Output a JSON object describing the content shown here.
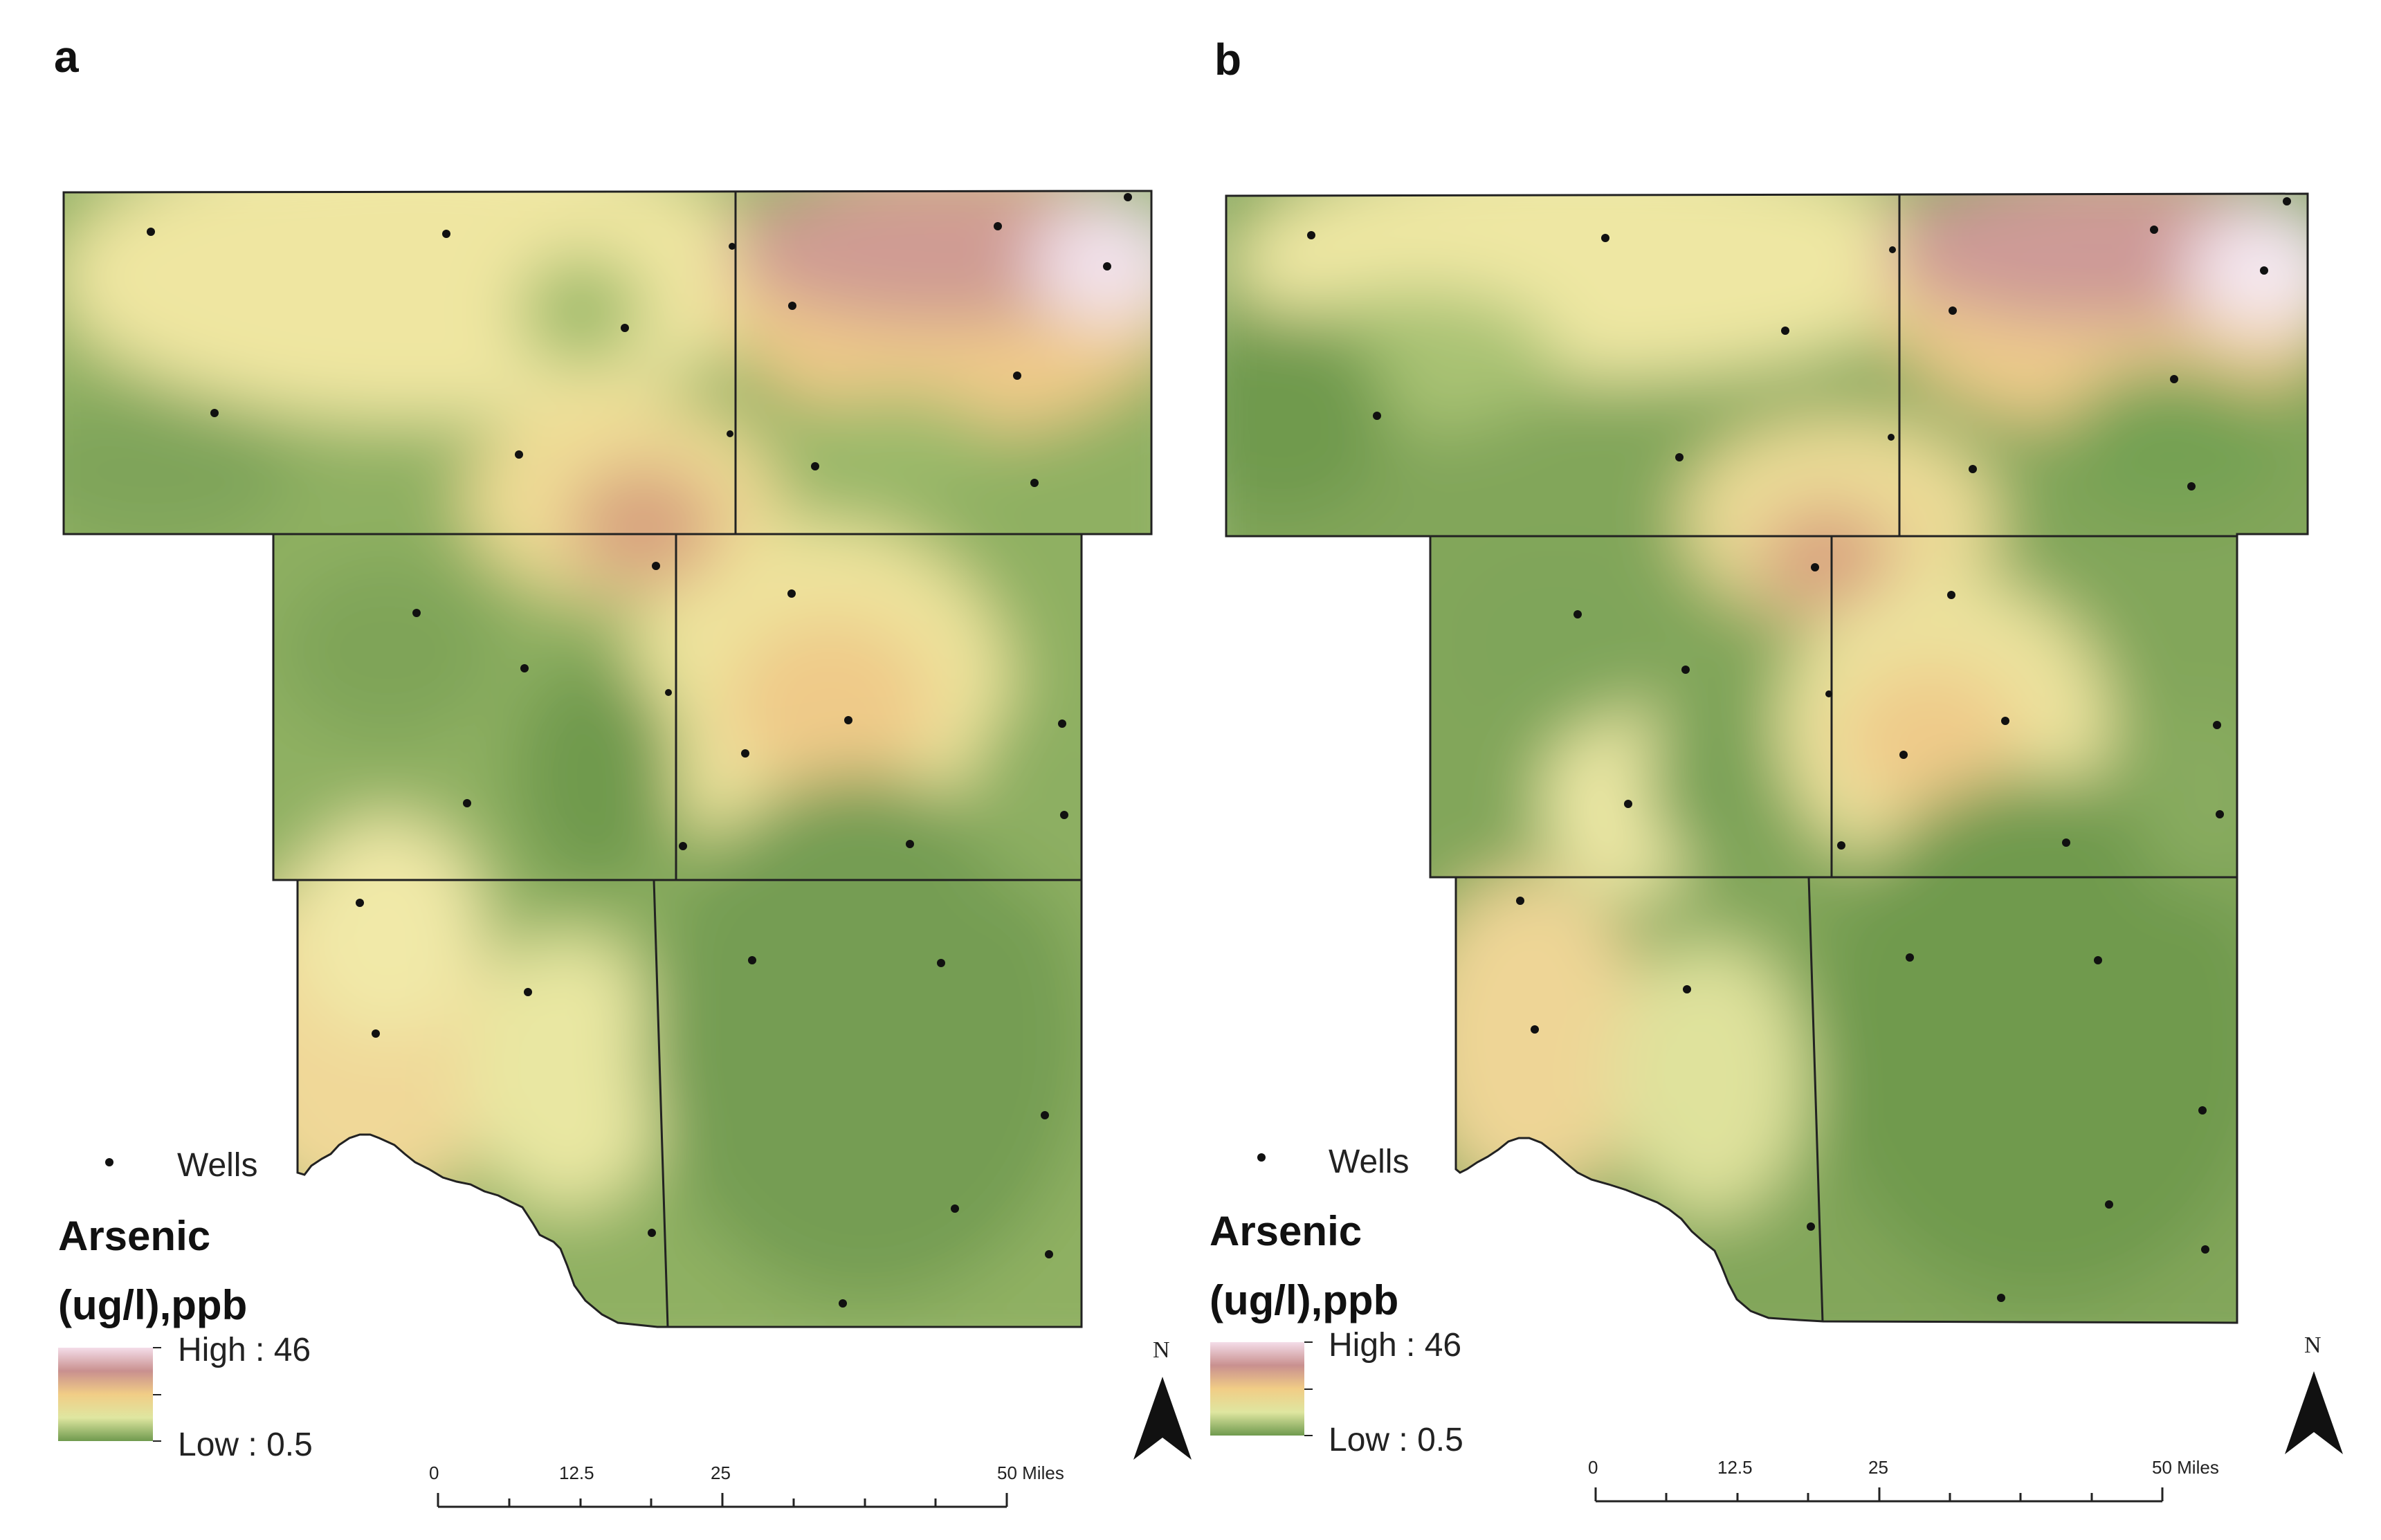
{
  "panels": [
    {
      "label": "a",
      "legend": {
        "wells": "Wells",
        "title_line1": "Arsenic",
        "title_line2": "(ug/l),ppb",
        "high": "High : 46",
        "low": "Low : 0.5"
      },
      "scale": {
        "ticks": [
          "0",
          "12.5",
          "25",
          "50 Miles"
        ]
      },
      "north": "N"
    },
    {
      "label": "b",
      "legend": {
        "wells": "Wells",
        "title_line1": "Arsenic",
        "title_line2": "(ug/l),ppb",
        "high": "High : 46",
        "low": "Low : 0.5"
      },
      "scale": {
        "ticks": [
          "0",
          "12.5",
          "25",
          "50 Miles"
        ]
      },
      "north": "N"
    }
  ],
  "colors": {
    "high": "#f2e2ec",
    "high_mid": "#c78f8e",
    "mid": "#f0cf86",
    "low_mid": "#eceba1",
    "low": "#6f9a4e"
  }
}
